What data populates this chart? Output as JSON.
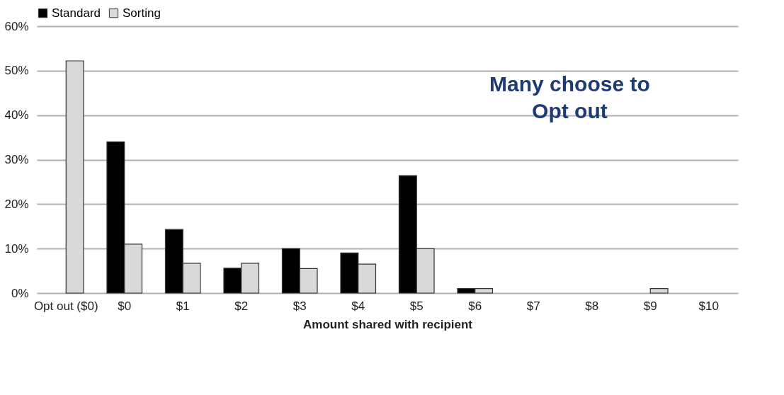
{
  "chart_data": {
    "type": "bar",
    "xlabel": "Amount shared with recipient",
    "categories": [
      "Opt out\n($0)",
      "$0",
      "$1",
      "$2",
      "$3",
      "$4",
      "$5",
      "$6",
      "$7",
      "$8",
      "$9",
      "$10"
    ],
    "series": [
      {
        "name": "Standard",
        "color": "#000000",
        "values": [
          null,
          34,
          14.3,
          5.6,
          10,
          9,
          26.4,
          1,
          null,
          null,
          null,
          null
        ]
      },
      {
        "name": "Sorting",
        "color": "#d9d9d9",
        "values": [
          52.2,
          11,
          6.7,
          6.7,
          5.5,
          6.5,
          10,
          1,
          null,
          null,
          1,
          null
        ]
      }
    ],
    "ylim": [
      0,
      60
    ],
    "yticks": [
      {
        "value": 0,
        "label": "0%"
      },
      {
        "value": 10,
        "label": "10%"
      },
      {
        "value": 20,
        "label": "20%"
      },
      {
        "value": 30,
        "label": "30%"
      },
      {
        "value": 40,
        "label": "40%"
      },
      {
        "value": 50,
        "label": "50%"
      },
      {
        "value": 60,
        "label": "60%"
      }
    ],
    "grid": "y",
    "legend": "top",
    "annotations": [
      "Many choose to\nOpt out"
    ]
  }
}
